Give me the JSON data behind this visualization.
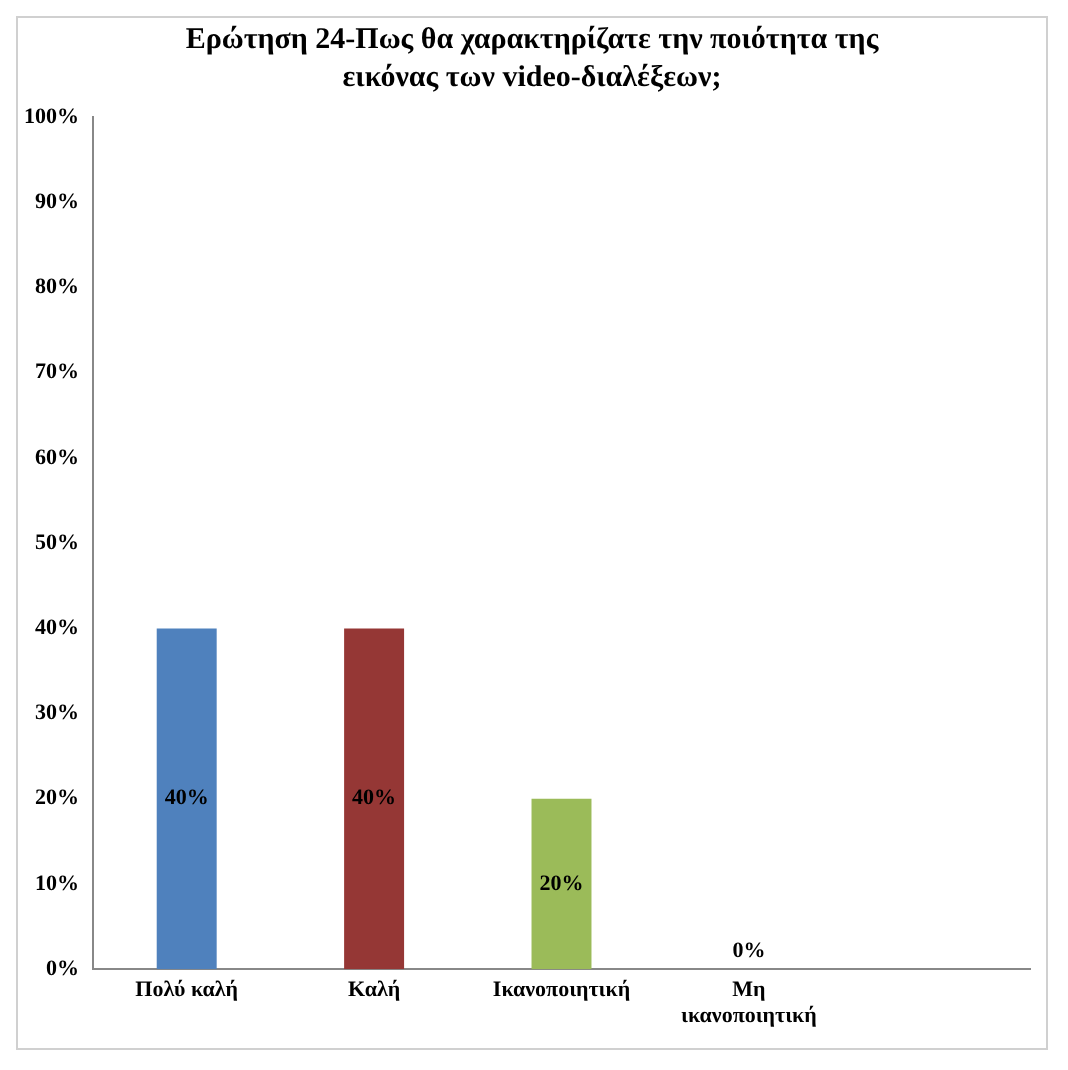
{
  "chart_data": {
    "type": "bar",
    "title": "Ερώτηση 24-Πως θα χαρακτηρίζατε την ποιότητα της εικόνας των video-διαλέξεων;",
    "categories": [
      "Πολύ καλή",
      "Καλή",
      "Ικανοποιητική",
      "Μη ικανοποιητική",
      null
    ],
    "values": [
      40,
      40,
      20,
      0,
      null
    ],
    "colors": [
      "#4f81bd",
      "#953735",
      "#9bbb59",
      "#4f81bd",
      "#4f81bd"
    ],
    "value_labels": [
      "40%",
      "40%",
      "20%",
      "0%",
      null
    ],
    "ylim": [
      0,
      100
    ],
    "yticks": [
      {
        "value": 0,
        "label": "0%"
      },
      {
        "value": 10,
        "label": "10%"
      },
      {
        "value": 20,
        "label": "20%"
      },
      {
        "value": 30,
        "label": "30%"
      },
      {
        "value": 40,
        "label": "40%"
      },
      {
        "value": 50,
        "label": "50%"
      },
      {
        "value": 60,
        "label": "60%"
      },
      {
        "value": 70,
        "label": "70%"
      },
      {
        "value": 80,
        "label": "80%"
      },
      {
        "value": 90,
        "label": "90%"
      },
      {
        "value": 100,
        "label": "100%"
      }
    ],
    "grid": false,
    "legend": false
  }
}
